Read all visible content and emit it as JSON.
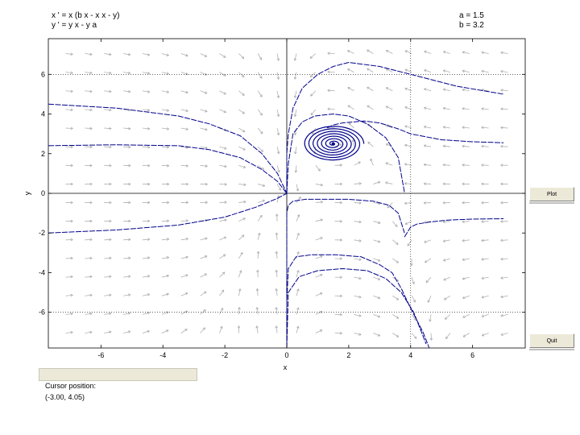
{
  "equations": {
    "line1": "x ' = x (b x - x x - y)",
    "line2": "y ' = y x - y a"
  },
  "params": {
    "a_label": "a = 1.5",
    "b_label": "b = 3.2"
  },
  "buttons": {
    "plot": "Plot",
    "quit": "Quit"
  },
  "status": {
    "label": "Cursor position:",
    "value": "(-3.00, 4.05)"
  },
  "chart_data": {
    "type": "line",
    "xlabel": "x",
    "ylabel": "y",
    "xlim": [
      -7.7,
      7.7
    ],
    "ylim": [
      -7.8,
      7.8
    ],
    "xticks": [
      -6,
      -4,
      -2,
      0,
      2,
      4,
      6
    ],
    "yticks": [
      -6,
      -4,
      -2,
      0,
      2,
      4,
      6
    ],
    "dashed_gridlines_x": [
      4
    ],
    "dashed_gridlines_y": [
      6.0,
      -6.0
    ],
    "colors": {
      "trajectory": "#00008b",
      "vector_field": "#b0b0b0",
      "axes": "#000000"
    },
    "equilibrium": [
      1.5,
      2.5
    ],
    "series": [
      {
        "x": [
          -7.7,
          -5.5,
          -3.5,
          -2.5,
          -1.5,
          -0.8,
          -0.3,
          0.0
        ],
        "y": [
          4.5,
          4.3,
          3.9,
          3.5,
          2.9,
          2.0,
          1.0,
          0.0
        ]
      },
      {
        "x": [
          -7.7,
          -5.5,
          -3.5,
          -2.5,
          -1.5,
          -0.8,
          -0.3,
          0.0
        ],
        "y": [
          2.4,
          2.45,
          2.4,
          2.2,
          1.8,
          1.2,
          0.6,
          0.0
        ]
      },
      {
        "x": [
          -7.7,
          -5.5,
          -3.5,
          -2.0,
          -1.0,
          -0.3,
          0.0
        ],
        "y": [
          -2.0,
          -1.85,
          -1.6,
          -1.2,
          -0.7,
          -0.25,
          0.0
        ]
      },
      {
        "x": [
          0.0,
          0.0,
          0.05,
          0.2,
          0.5,
          1.0,
          1.5,
          2.0,
          3.0,
          4.0,
          5.5,
          7.0
        ],
        "y": [
          -0.05,
          2.0,
          3.0,
          4.3,
          5.3,
          6.0,
          6.4,
          6.6,
          6.4,
          6.0,
          5.4,
          5.0
        ]
      },
      {
        "x": [
          0.0,
          0.05,
          0.2,
          0.5,
          0.9,
          1.5,
          2.0,
          2.6,
          3.2,
          3.6,
          3.8
        ],
        "y": [
          0.0,
          1.5,
          3.0,
          3.6,
          3.9,
          4.0,
          3.9,
          3.5,
          2.8,
          1.8,
          0.05
        ]
      },
      {
        "x": [
          0.0,
          0.0,
          0.05,
          0.2,
          0.6,
          1.2,
          2.0,
          2.8,
          3.3,
          3.6,
          3.8
        ],
        "y": [
          -7.8,
          -1.0,
          -0.6,
          -0.4,
          -0.3,
          -0.3,
          -0.3,
          -0.4,
          -0.6,
          -1.0,
          -2.0
        ]
      },
      {
        "x": [
          0.0,
          0.0,
          0.05,
          0.3,
          0.8,
          1.6,
          2.4,
          3.0,
          3.4,
          3.7,
          4.0,
          4.4,
          4.6
        ],
        "y": [
          -7.8,
          -5.5,
          -3.8,
          -3.2,
          -3.1,
          -3.1,
          -3.2,
          -3.6,
          -4.0,
          -4.8,
          -5.8,
          -7.0,
          -7.8
        ]
      },
      {
        "x": [
          0.0,
          0.05,
          0.4,
          1.0,
          1.8,
          2.6,
          3.2,
          3.7,
          4.1,
          4.5
        ],
        "y": [
          -7.8,
          -5.0,
          -4.2,
          -3.9,
          -3.8,
          -3.9,
          -4.3,
          -5.0,
          -6.0,
          -7.6
        ]
      },
      {
        "x": [
          3.8,
          4.0,
          4.2,
          4.6,
          5.2,
          6.0,
          7.0
        ],
        "y": [
          -2.2,
          -1.7,
          -1.55,
          -1.45,
          -1.35,
          -1.3,
          -1.28
        ]
      },
      {
        "x": [
          1.3,
          1.5,
          1.8,
          2.5,
          3.0,
          3.6,
          4.0,
          5.0,
          6.0,
          7.0
        ],
        "y": [
          3.3,
          3.45,
          3.55,
          3.65,
          3.55,
          3.25,
          3.0,
          2.7,
          2.6,
          2.55
        ]
      }
    ]
  }
}
